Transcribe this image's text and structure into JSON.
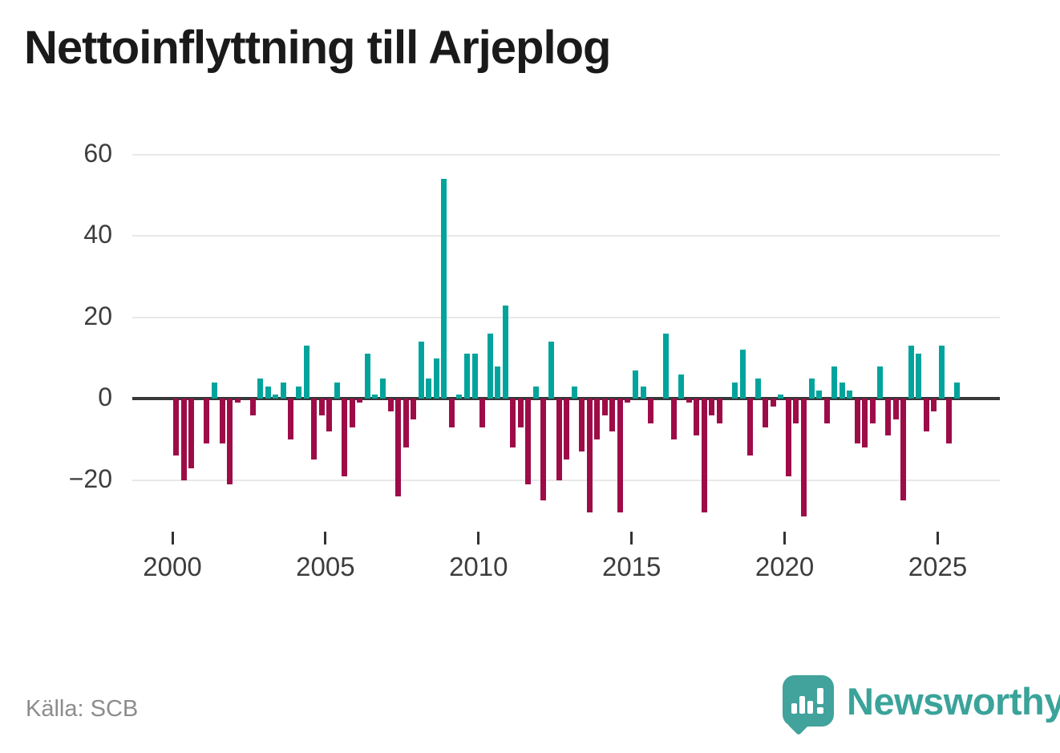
{
  "title": "Nettoinflyttning till Arjeplog",
  "source": "Källa: SCB",
  "branding": {
    "name": "Newsworthy",
    "icon": "speech-bubble-bar-chart-icon"
  },
  "colors": {
    "positive": "#00a49c",
    "negative": "#9e0c48",
    "zero_line": "#383838",
    "gridline": "#e8e8e8",
    "axis_text": "#3d3d3d",
    "title_text": "#1a1a1a",
    "source_text": "#8c8c8c",
    "brand_teal": "#41a39c",
    "background": "#ffffff"
  },
  "chart_data": {
    "type": "bar",
    "title": "Nettoinflyttning till Arjeplog",
    "frequency": "quarterly",
    "start_year": 2000,
    "start_quarter": 1,
    "grid": true,
    "legend": "none",
    "y_ticks": [
      60,
      40,
      20,
      0,
      -20
    ],
    "y_tick_labels": [
      "60",
      "40",
      "20",
      "0",
      "−20"
    ],
    "ylim": [
      -32,
      62
    ],
    "x_tick_years": [
      2000,
      2005,
      2010,
      2015,
      2020,
      2025
    ],
    "values": [
      -14,
      -20,
      -17,
      0,
      -11,
      4,
      -11,
      -21,
      -1,
      0,
      -4,
      5,
      3,
      1,
      4,
      -10,
      3,
      13,
      -15,
      -4,
      -8,
      4,
      -19,
      -7,
      -1,
      11,
      1,
      5,
      -3,
      -24,
      -12,
      -5,
      14,
      5,
      10,
      54,
      -7,
      1,
      11,
      11,
      -7,
      16,
      8,
      23,
      -12,
      -7,
      -21,
      3,
      -25,
      14,
      -20,
      -15,
      3,
      -13,
      -28,
      -10,
      -4,
      -8,
      -28,
      -1,
      7,
      3,
      -6,
      0,
      16,
      -10,
      6,
      -1,
      -9,
      -28,
      -4,
      -6,
      0,
      4,
      12,
      -14,
      5,
      -7,
      -2,
      1,
      -19,
      -6,
      -29,
      5,
      2,
      -6,
      8,
      4,
      2,
      -11,
      -12,
      -6,
      8,
      -9,
      -5,
      -25,
      13,
      11,
      -8,
      -3,
      13,
      -11,
      4
    ]
  }
}
